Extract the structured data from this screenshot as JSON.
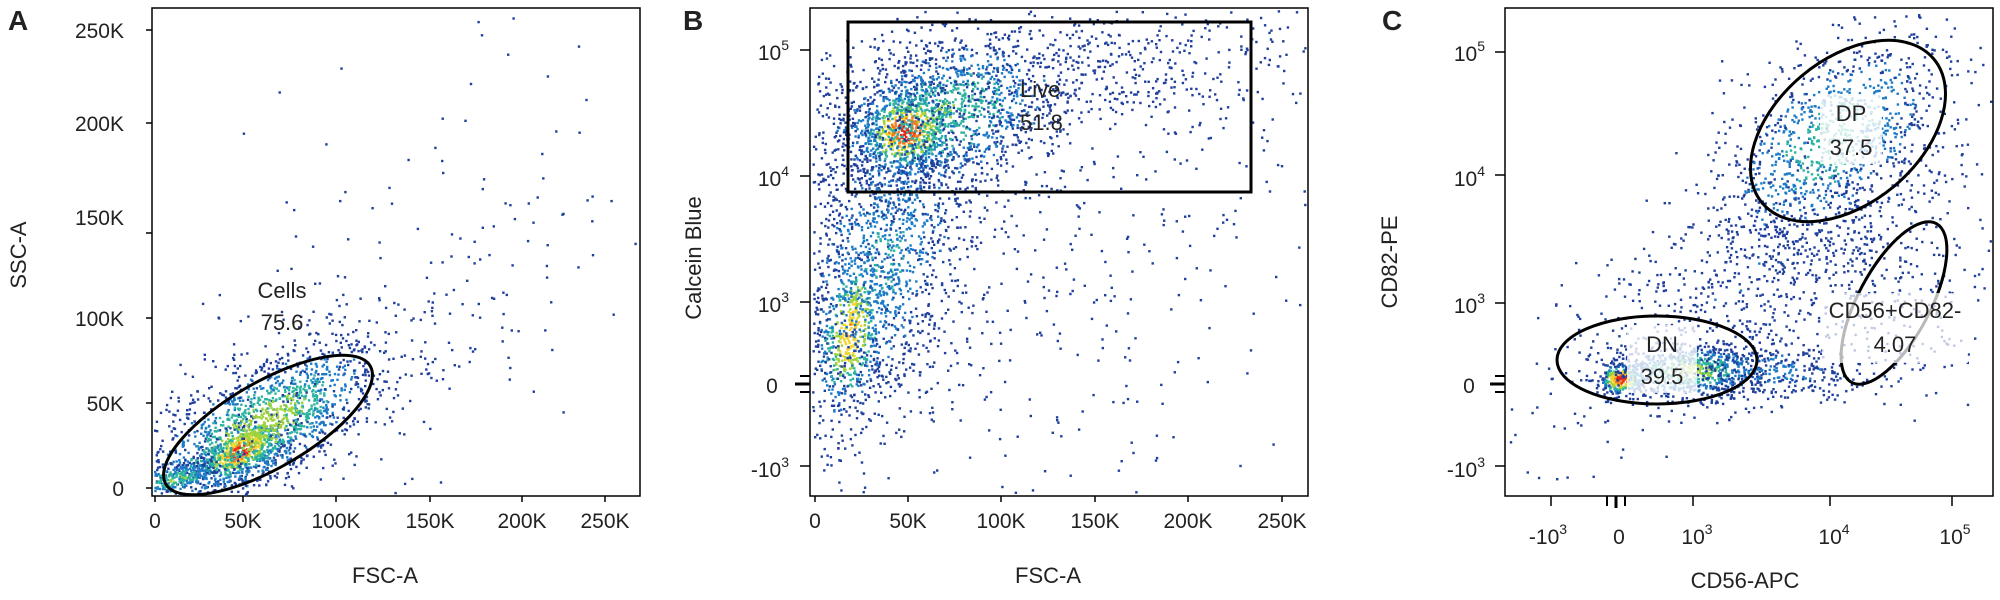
{
  "figure": {
    "panels": [
      {
        "letter": "A",
        "xlabel": "FSC-A",
        "ylabel": "SSC-A",
        "xticks": [
          "0",
          "50K",
          "100K",
          "150K",
          "200K",
          "250K"
        ],
        "yticks": [
          "0",
          "50K",
          "100K",
          "150K",
          "200K",
          "250K"
        ],
        "gate": {
          "name": "Cells",
          "value": "75.6"
        }
      },
      {
        "letter": "B",
        "xlabel": "FSC-A",
        "ylabel": "Calcein Blue",
        "xticks": [
          "0",
          "50K",
          "100K",
          "150K",
          "200K",
          "250K"
        ],
        "yticks": [
          "-10",
          "0",
          "10",
          "10",
          "10"
        ],
        "yexp": [
          "3",
          "",
          "3",
          "4",
          "5"
        ],
        "gate": {
          "name": "Live",
          "value": "51.8"
        }
      },
      {
        "letter": "C",
        "xlabel": "CD56-APC",
        "ylabel": "CD82-PE",
        "xticks": [
          "-10",
          "0",
          "10",
          "10",
          "10"
        ],
        "xexp": [
          "3",
          "",
          "3",
          "4",
          "5"
        ],
        "yticks": [
          "-10",
          "0",
          "10",
          "10",
          "10"
        ],
        "yexp": [
          "3",
          "",
          "3",
          "4",
          "5"
        ],
        "gates": [
          {
            "name": "DP",
            "value": "37.5"
          },
          {
            "name": "DN",
            "value": "39.5"
          },
          {
            "name": "CD56+CD82-",
            "value": "4.07"
          }
        ]
      }
    ]
  },
  "chart_data": [
    {
      "type": "scatter",
      "title": "A",
      "xlabel": "FSC-A",
      "ylabel": "SSC-A",
      "xlim": [
        0,
        270000
      ],
      "ylim": [
        0,
        262000
      ],
      "point_density": "dense population 20K-120K FSC-A, 0-70K SSC-A, peak near (45K, 20K); sparse tail toward (250K, 250K)",
      "gates": [
        {
          "name": "Cells",
          "value": 75.6,
          "shape": "ellipse"
        }
      ]
    },
    {
      "type": "scatter",
      "title": "B",
      "xlabel": "FSC-A",
      "ylabel": "Calcein Blue",
      "xlim": [
        0,
        270000
      ],
      "yscale": "biexponential",
      "point_density": "bright population near (50K, 2x10^4); dim population near (10K-30K, 0-10^3)",
      "gates": [
        {
          "name": "Live",
          "value": 51.8,
          "shape": "rectangle"
        }
      ]
    },
    {
      "type": "scatter",
      "title": "C",
      "xlabel": "CD56-APC",
      "ylabel": "CD82-PE",
      "xscale": "biexponential",
      "yscale": "biexponential",
      "point_density": "double-negative cluster near (0, 0); double-positive cluster near (10^4, 10^4)",
      "gates": [
        {
          "name": "DP",
          "value": 37.5,
          "shape": "ellipse"
        },
        {
          "name": "DN",
          "value": 39.5,
          "shape": "ellipse"
        },
        {
          "name": "CD56+CD82-",
          "value": 4.07,
          "shape": "ellipse"
        }
      ]
    }
  ]
}
